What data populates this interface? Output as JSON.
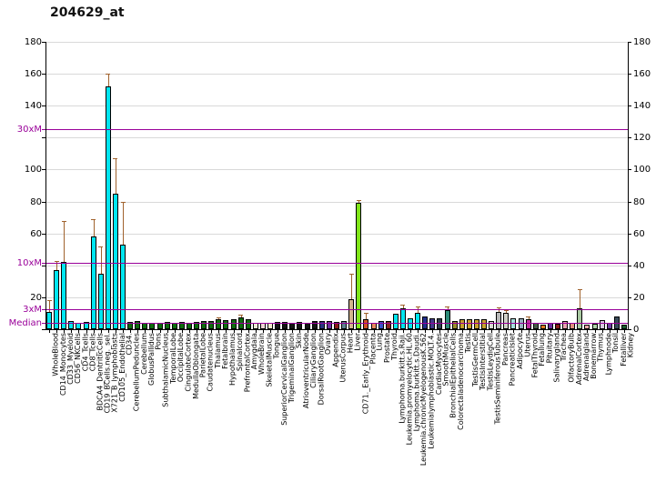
{
  "title": "204629_at",
  "chart_data": {
    "type": "bar",
    "title": "204629_at",
    "ylabel": "",
    "xlabel": "",
    "ylim": [
      0,
      180
    ],
    "ytick_step": 20,
    "grid": "horizontal",
    "legend": "none",
    "left_axis_numeric_labels": [
      180,
      160,
      140,
      100,
      80,
      60,
      20
    ],
    "right_axis_numeric_labels": [
      180,
      160,
      140,
      120,
      100,
      80,
      60,
      40,
      20,
      0
    ],
    "marker_color": "#990099",
    "error_bar_color": "#a0622d",
    "marker_lines": [
      {
        "label": "Median",
        "value": 4.2
      },
      {
        "label": "3xM",
        "value": 12.5
      },
      {
        "label": "10xM",
        "value": 41.8
      },
      {
        "label": "30xM",
        "value": 125.4
      }
    ],
    "bars": [
      {
        "label": "WholeBlood",
        "value": 11,
        "err": 18,
        "color": "#00e6f0"
      },
      {
        "label": "CD14_Monocytes",
        "value": 37,
        "err": 43,
        "color": "#00e6f0"
      },
      {
        "label": "CD33_Myeloid",
        "value": 42,
        "err": 68,
        "color": "#00e6f0"
      },
      {
        "label": "CD56_NKCells",
        "value": 5,
        "err": null,
        "color": "#00e6f0"
      },
      {
        "label": "CD4_Tcells",
        "value": 4,
        "err": null,
        "color": "#00e6f0"
      },
      {
        "label": "CD8_Tcells",
        "value": 4.5,
        "err": null,
        "color": "#00e6f0"
      },
      {
        "label": "BDCA4_DentriticCells",
        "value": 58,
        "err": 69,
        "color": "#00e6f0"
      },
      {
        "label": "CD19_BCells.neg._sel.",
        "value": 35,
        "err": 52,
        "color": "#00e6f0"
      },
      {
        "label": "X721_B_lymphoblasts",
        "value": 152,
        "err": 160,
        "color": "#00e6f0"
      },
      {
        "label": "CD105_Endothelial",
        "value": 85,
        "err": 107,
        "color": "#00e6f0"
      },
      {
        "label": "CD34.",
        "value": 53,
        "err": 80,
        "color": "#00e6f0"
      },
      {
        "label": "CerebellumPeduncles",
        "value": 4.5,
        "err": null,
        "color": "#0e6b0e"
      },
      {
        "label": "Cerebellum",
        "value": 5,
        "err": null,
        "color": "#0e6b0e"
      },
      {
        "label": "GlobusPallidus",
        "value": 4,
        "err": null,
        "color": "#0e6b0e"
      },
      {
        "label": "Pons",
        "value": 4,
        "err": null,
        "color": "#0e6b0e"
      },
      {
        "label": "SubthalamicNucleus",
        "value": 4,
        "err": null,
        "color": "#0e6b0e"
      },
      {
        "label": "TemporalLobe",
        "value": 4.5,
        "err": null,
        "color": "#0e6b0e"
      },
      {
        "label": "OccipitalLobe",
        "value": 4,
        "err": null,
        "color": "#0e6b0e"
      },
      {
        "label": "CingulateCortex",
        "value": 4.5,
        "err": null,
        "color": "#0e6b0e"
      },
      {
        "label": "MedullaOblongata",
        "value": 4,
        "err": null,
        "color": "#0e6b0e"
      },
      {
        "label": "ParietalLobe",
        "value": 4.5,
        "err": null,
        "color": "#0e6b0e"
      },
      {
        "label": "Caudatenucleus",
        "value": 5,
        "err": null,
        "color": "#0e6b0e"
      },
      {
        "label": "Thalamus",
        "value": 5,
        "err": null,
        "color": "#0e6b0e"
      },
      {
        "label": "Fetalbrain",
        "value": 6,
        "err": 7.5,
        "color": "#0e6b0e"
      },
      {
        "label": "Hypothalamus",
        "value": 5.5,
        "err": null,
        "color": "#0e6b0e"
      },
      {
        "label": "Spinalcord",
        "value": 6,
        "err": null,
        "color": "#0e6b0e"
      },
      {
        "label": "PrefrontalCortex",
        "value": 7.5,
        "err": 9,
        "color": "#0e6b0e"
      },
      {
        "label": "Amygdala",
        "value": 6,
        "err": null,
        "color": "#0e6b0e"
      },
      {
        "label": "WholeBrain",
        "value": 4,
        "err": null,
        "color": "#eee8d8"
      },
      {
        "label": "SkeletalMuscle",
        "value": 4,
        "err": null,
        "color": "#f0d6d6"
      },
      {
        "label": "Tongue",
        "value": 4,
        "err": null,
        "color": "#f2e8cc"
      },
      {
        "label": "SuperiorCervicalGanglion",
        "value": 4.5,
        "err": null,
        "color": "#141414"
      },
      {
        "label": "TrigeminalGanglion",
        "value": 4.5,
        "err": null,
        "color": "#141414"
      },
      {
        "label": "Skin",
        "value": 4,
        "err": null,
        "color": "#141414"
      },
      {
        "label": "AtrioventricularNode",
        "value": 4.5,
        "err": null,
        "color": "#141414"
      },
      {
        "label": "CiliaryGanglion",
        "value": 4,
        "err": null,
        "color": "#141414"
      },
      {
        "label": "DorsalRootGanglion",
        "value": 5,
        "err": null,
        "color": "#141414"
      },
      {
        "label": "Ovary",
        "value": 5,
        "err": null,
        "color": "#2a3480"
      },
      {
        "label": "Appendix",
        "value": 5,
        "err": null,
        "color": "#7030a0"
      },
      {
        "label": "UterusCorpus",
        "value": 4.5,
        "err": null,
        "color": "#8b1a1a"
      },
      {
        "label": "Heart",
        "value": 5,
        "err": null,
        "color": "#5f8090"
      },
      {
        "label": "Liver",
        "value": 19,
        "err": 35,
        "color": "#d2b48c"
      },
      {
        "label": "CD71._Early_Erythroid",
        "value": 79,
        "err": 81,
        "color": "#80e518"
      },
      {
        "label": "Placenta",
        "value": 6.5,
        "err": 10,
        "color": "#d05028"
      },
      {
        "label": "Lung",
        "value": 4,
        "err": null,
        "color": "#e88860"
      },
      {
        "label": "Prostate",
        "value": 5,
        "err": null,
        "color": "#3a50c8"
      },
      {
        "label": "Thyroid",
        "value": 5,
        "err": null,
        "color": "#8b2424"
      },
      {
        "label": "Lymphoma.burkitt.s.Raji.",
        "value": 9.5,
        "err": null,
        "color": "#00e6f0"
      },
      {
        "label": "Leukemia.promyelocytic.HL.60",
        "value": 13,
        "err": 15.5,
        "color": "#00e6f0"
      },
      {
        "label": "Lymphoma.burkitt.s.Daudi.",
        "value": 7,
        "err": null,
        "color": "#00e6f0"
      },
      {
        "label": "Leukemia.chronicMyelogenousK.562",
        "value": 10.5,
        "err": 14,
        "color": "#00e6f0"
      },
      {
        "label": "Leukemialymphoblastic.MOLT.4.",
        "value": 8,
        "err": null,
        "color": "#222e8c"
      },
      {
        "label": "CardiacMyocytes",
        "value": 7,
        "err": null,
        "color": "#443a8c"
      },
      {
        "label": "SmoothMuscle",
        "value": 7,
        "err": null,
        "color": "#2f4050"
      },
      {
        "label": "BronchialEpithelialCells",
        "value": 12,
        "err": 14.5,
        "color": "#2e8b78"
      },
      {
        "label": "Colorectaladenocarcinoma",
        "value": 5,
        "err": null,
        "color": "#9a8b2f"
      },
      {
        "label": "Testis",
        "value": 6.5,
        "err": null,
        "color": "#c8a030"
      },
      {
        "label": "TestisGermCell",
        "value": 6,
        "err": null,
        "color": "#c8a030"
      },
      {
        "label": "TestisInterstitial",
        "value": 6.5,
        "err": null,
        "color": "#c8a030"
      },
      {
        "label": "TestisLeydigCell",
        "value": 6,
        "err": null,
        "color": "#c8a030"
      },
      {
        "label": "TestisSeminiferousTubule",
        "value": 5,
        "err": null,
        "color": "#d8d8d0"
      },
      {
        "label": "Pancreas",
        "value": 11,
        "err": 13.5,
        "color": "#b8b8b8"
      },
      {
        "label": "PancreaticIslet",
        "value": 10,
        "err": 12,
        "color": "#d0d0c8"
      },
      {
        "label": "Adipocyte",
        "value": 7,
        "err": null,
        "color": "#a8e0e0"
      },
      {
        "label": "Uterus",
        "value": 7,
        "err": null,
        "color": "#98b0c0"
      },
      {
        "label": "FetalThyroid",
        "value": 6,
        "err": 8,
        "color": "#c030a0"
      },
      {
        "label": "Fetallung",
        "value": 4,
        "err": null,
        "color": "#485848"
      },
      {
        "label": "Pituitary",
        "value": 3,
        "err": null,
        "color": "#e07820"
      },
      {
        "label": "Salivarygland",
        "value": 4,
        "err": null,
        "color": "#6a2d9a"
      },
      {
        "label": "Trachea",
        "value": 3.5,
        "err": null,
        "color": "#8b1a1a"
      },
      {
        "label": "OlfactoryBulb",
        "value": 5,
        "err": null,
        "color": "#e8a0b0"
      },
      {
        "label": "AdrenalCortex",
        "value": 4,
        "err": null,
        "color": "#e09080"
      },
      {
        "label": "Adrenalgland",
        "value": 13,
        "err": 25,
        "color": "#a8c8a0"
      },
      {
        "label": "Bonemarrow",
        "value": 3,
        "err": null,
        "color": "#e8a8a8"
      },
      {
        "label": "Thymus",
        "value": 3.5,
        "err": null,
        "color": "#b0d0a8"
      },
      {
        "label": "Lymphnode",
        "value": 5.5,
        "err": null,
        "color": "#d8c8e0"
      },
      {
        "label": "Tonsil",
        "value": 4,
        "err": null,
        "color": "#7040a0"
      },
      {
        "label": "Fetalliver",
        "value": 8,
        "err": null,
        "color": "#3a4a5a"
      },
      {
        "label": "Kidney",
        "value": 3,
        "err": null,
        "color": "#1a5a2a"
      }
    ]
  }
}
